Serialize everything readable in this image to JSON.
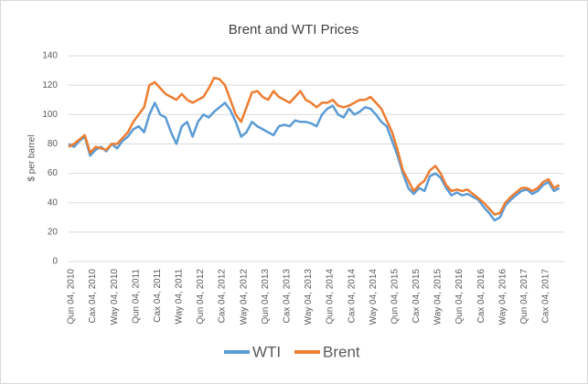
{
  "chart_data": {
    "type": "line",
    "title": "Brent and WTI Prices",
    "y_label": "$ per barrel",
    "categories": [
      "Qun 04, 2010",
      null,
      null,
      null,
      "Cax 04, 2010",
      null,
      null,
      null,
      "Way 04, 2010",
      null,
      null,
      null,
      "Qun 04, 2011",
      null,
      null,
      null,
      "Cax 04, 2011",
      null,
      null,
      null,
      "Way 04, 2011",
      null,
      null,
      null,
      "Qun 04, 2012",
      null,
      null,
      null,
      "Cax 04, 2012",
      null,
      null,
      null,
      "Way 04, 2012",
      null,
      null,
      null,
      "Qun 04, 2013",
      null,
      null,
      null,
      "Cax 04, 2013",
      null,
      null,
      null,
      "Way 04, 2013",
      null,
      null,
      null,
      "Qun 04, 2014",
      null,
      null,
      null,
      "Cax 04, 2014",
      null,
      null,
      null,
      "Way 04, 2014",
      null,
      null,
      null,
      "Qun 04, 2015",
      null,
      null,
      null,
      "Cax 04, 2015",
      null,
      null,
      null,
      "Way 04, 2015",
      null,
      null,
      null,
      "Qun 04, 2016",
      null,
      null,
      null,
      "Cax 04, 2016",
      null,
      null,
      null,
      "Way 04, 2016",
      null,
      null,
      null,
      "Qun 04, 2017",
      null,
      null,
      null,
      "Cax 04, 2017",
      null,
      null,
      null
    ],
    "series": [
      {
        "name": "WTI",
        "color": "#5b9bd5",
        "values": [
          80,
          78,
          82,
          85,
          72,
          76,
          78,
          75,
          80,
          77,
          82,
          85,
          90,
          92,
          88,
          100,
          108,
          100,
          98,
          88,
          80,
          92,
          95,
          85,
          95,
          100,
          98,
          102,
          105,
          108,
          103,
          95,
          85,
          88,
          95,
          92,
          90,
          88,
          86,
          92,
          93,
          92,
          96,
          95,
          95,
          94,
          92,
          100,
          104,
          106,
          100,
          98,
          104,
          100,
          102,
          105,
          104,
          100,
          95,
          92,
          82,
          72,
          60,
          50,
          46,
          50,
          48,
          58,
          60,
          57,
          50,
          45,
          47,
          45,
          46,
          44,
          42,
          37,
          33,
          28,
          30,
          38,
          42,
          45,
          48,
          49,
          46,
          48,
          52,
          54,
          48,
          50
        ]
      },
      {
        "name": "Brent",
        "color": "#ed7d31",
        "values": [
          78,
          80,
          83,
          86,
          74,
          78,
          77,
          76,
          80,
          80,
          84,
          88,
          95,
          100,
          105,
          120,
          122,
          118,
          114,
          112,
          110,
          114,
          110,
          108,
          110,
          112,
          118,
          125,
          124,
          120,
          110,
          100,
          95,
          105,
          115,
          116,
          112,
          110,
          116,
          112,
          110,
          108,
          112,
          116,
          110,
          108,
          105,
          108,
          108,
          110,
          106,
          105,
          106,
          108,
          110,
          110,
          112,
          108,
          104,
          96,
          88,
          76,
          62,
          55,
          48,
          52,
          55,
          62,
          65,
          60,
          52,
          48,
          49,
          48,
          49,
          46,
          43,
          40,
          36,
          32,
          33,
          40,
          44,
          47,
          50,
          50,
          48,
          50,
          54,
          56,
          50,
          52
        ]
      }
    ],
    "ylim": [
      0,
      140
    ],
    "yticks": [
      0,
      20,
      40,
      60,
      80,
      100,
      120,
      140
    ],
    "grid": true,
    "legend": "bottom"
  }
}
